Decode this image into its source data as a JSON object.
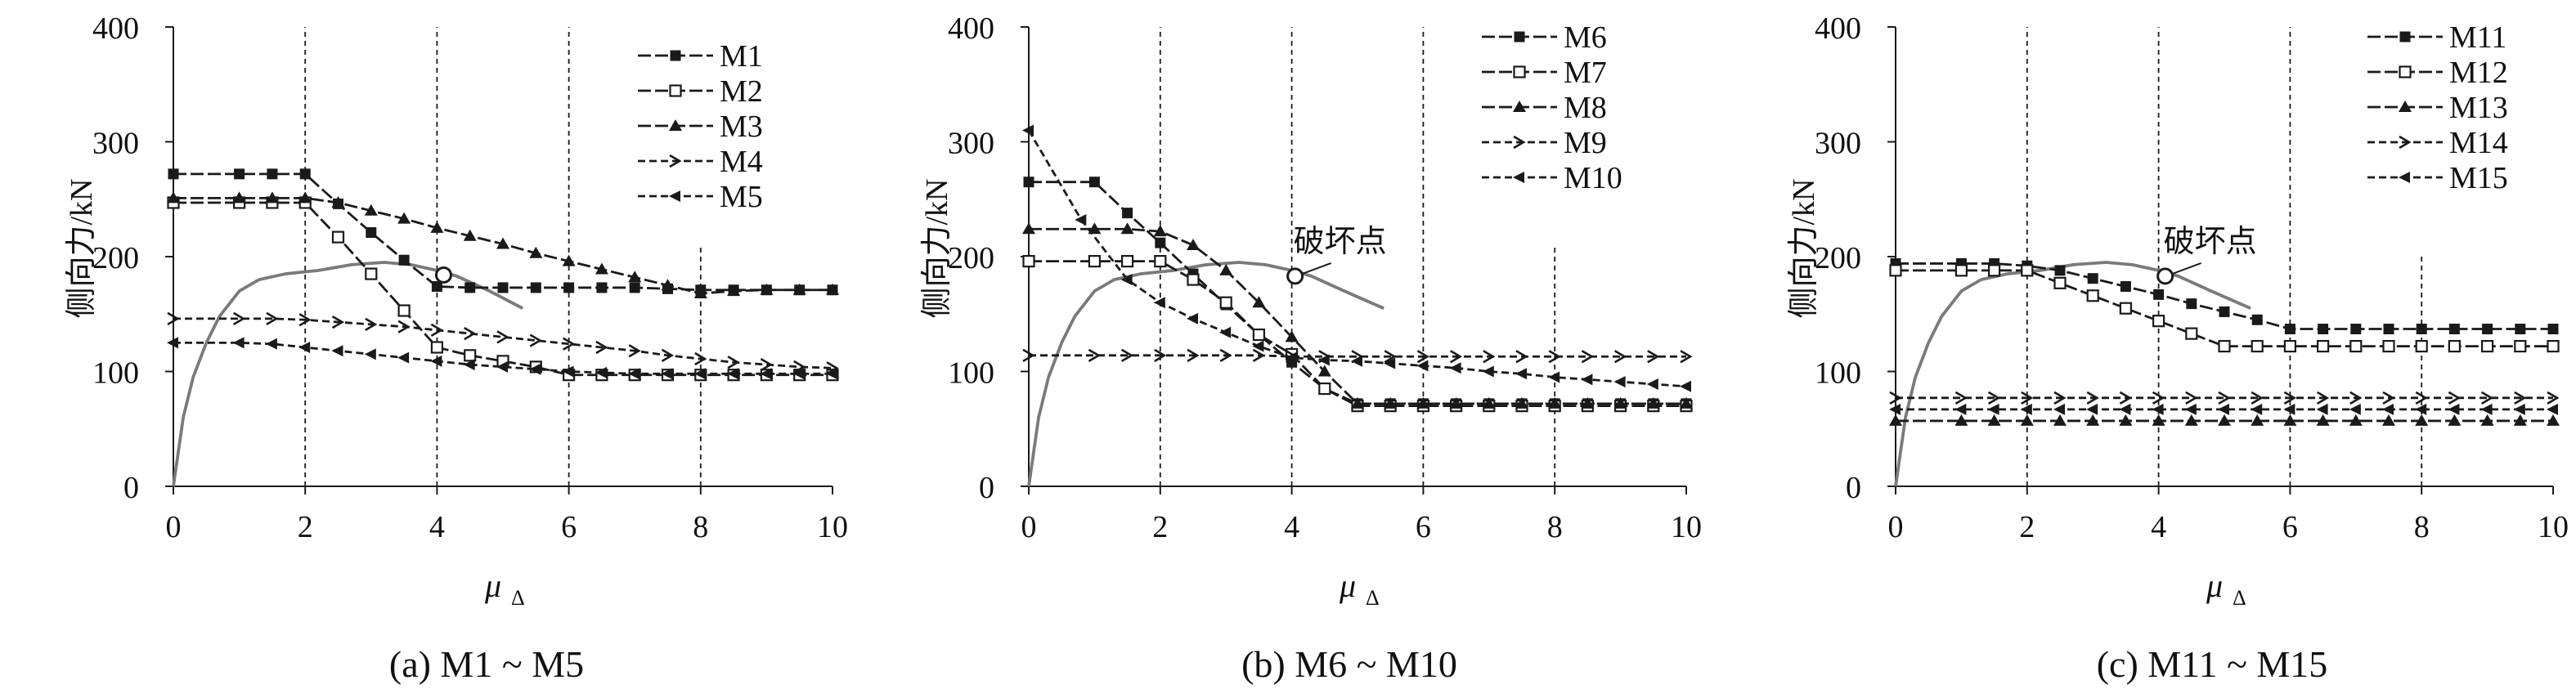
{
  "colors": {
    "ink": "#1a1a1a",
    "capacity_curve": "#7a7a7a",
    "grid": "#1a1a1a"
  },
  "chart_data": [
    {
      "type": "line",
      "caption": "(a) M1 ~ M5",
      "xlabel": "μ",
      "xlabel_sub": "Δ",
      "ylabel": "侧向力/kN",
      "xlim": [
        0,
        10
      ],
      "ylim": [
        0,
        400
      ],
      "xticks": [
        "0",
        "2",
        "4",
        "6",
        "8",
        "10"
      ],
      "yticks": [
        "0",
        "100",
        "200",
        "300",
        "400"
      ],
      "dashed_x": [
        2,
        4,
        6,
        8
      ],
      "dashed_x_ymax": [
        400,
        400,
        400,
        210
      ],
      "legend_position": "top-right",
      "series": [
        {
          "name": "M1",
          "marker": "square-filled",
          "dash": "long",
          "x": [
            0,
            1,
            1.5,
            2,
            2.5,
            3,
            3.5,
            4,
            4.5,
            5,
            5.5,
            6,
            6.5,
            7,
            7.5,
            8,
            8.5,
            9,
            9.5,
            10
          ],
          "values": [
            272,
            272,
            272,
            272,
            246,
            221,
            197,
            174,
            173,
            173,
            173,
            173,
            173,
            173,
            172,
            171,
            171,
            171,
            171,
            171
          ]
        },
        {
          "name": "M2",
          "marker": "square-open",
          "dash": "long",
          "x": [
            0,
            1,
            1.5,
            2,
            2.5,
            3,
            3.5,
            4,
            4.5,
            5,
            5.5,
            6,
            6.5,
            7,
            7.5,
            8,
            8.5,
            9,
            9.5,
            10
          ],
          "values": [
            247,
            247,
            247,
            247,
            217,
            185,
            153,
            121,
            114,
            109,
            104,
            97,
            97,
            97,
            97,
            97,
            97,
            97,
            97,
            97
          ]
        },
        {
          "name": "M3",
          "marker": "triangle-filled",
          "dash": "long",
          "x": [
            0,
            1,
            1.5,
            2,
            2.5,
            3,
            3.5,
            4,
            4.5,
            5,
            5.5,
            6,
            6.5,
            7,
            7.5,
            8,
            8.5,
            9,
            9.5,
            10
          ],
          "values": [
            251,
            251,
            251,
            251,
            247,
            240,
            233,
            225,
            218,
            211,
            203,
            196,
            189,
            182,
            175,
            168,
            170,
            171,
            171,
            171
          ]
        },
        {
          "name": "M4",
          "marker": "chevron-right",
          "dash": "medium",
          "x": [
            0,
            1,
            1.5,
            2,
            2.5,
            3,
            3.5,
            4,
            4.5,
            5,
            5.5,
            6,
            6.5,
            7,
            7.5,
            8,
            8.5,
            9,
            9.5,
            10
          ],
          "values": [
            146,
            146,
            146,
            145,
            143,
            141,
            139,
            136,
            133,
            130,
            127,
            124,
            121,
            118,
            114,
            111,
            108,
            106,
            104,
            103
          ]
        },
        {
          "name": "M5",
          "marker": "triangle-left",
          "dash": "medium",
          "x": [
            0,
            1,
            1.5,
            2,
            2.5,
            3,
            3.5,
            4,
            4.5,
            5,
            5.5,
            6,
            6.5,
            7,
            7.5,
            8,
            8.5,
            9,
            9.5,
            10
          ],
          "values": [
            125,
            125,
            124,
            121,
            118,
            115,
            112,
            109,
            106,
            104,
            102,
            100,
            99,
            98,
            98,
            98,
            98,
            98,
            98,
            98
          ]
        }
      ],
      "capacity_curve": {
        "x": [
          0,
          0.15,
          0.3,
          0.5,
          0.7,
          1.0,
          1.3,
          1.7,
          2.2,
          2.7,
          3.2,
          3.6,
          4.0,
          4.3,
          4.8,
          5.3
        ],
        "values": [
          0,
          60,
          95,
          125,
          148,
          170,
          180,
          185,
          188,
          193,
          195,
          193,
          188,
          183,
          170,
          155
        ]
      },
      "failure_point": {
        "x": 4.1,
        "y": 184
      },
      "failure_label": ""
    },
    {
      "type": "line",
      "caption": "(b) M6 ~ M10",
      "xlabel": "μ",
      "xlabel_sub": "Δ",
      "ylabel": "侧向力/kN",
      "xlim": [
        0,
        10
      ],
      "ylim": [
        0,
        400
      ],
      "xticks": [
        "0",
        "2",
        "4",
        "6",
        "8",
        "10"
      ],
      "yticks": [
        "0",
        "100",
        "200",
        "300",
        "400"
      ],
      "dashed_x": [
        2,
        4,
        6,
        8
      ],
      "dashed_x_ymax": [
        400,
        400,
        400,
        210
      ],
      "legend_position": "top-right",
      "series": [
        {
          "name": "M6",
          "marker": "square-filled",
          "dash": "long",
          "x": [
            0,
            1,
            1.5,
            2,
            2.5,
            3,
            3.5,
            4,
            4.5,
            5,
            5.5,
            6,
            6.5,
            7,
            7.5,
            8,
            8.5,
            9,
            9.5,
            10
          ],
          "values": [
            265,
            265,
            238,
            212,
            185,
            158,
            132,
            108,
            85,
            72,
            72,
            72,
            72,
            72,
            72,
            72,
            72,
            72,
            72,
            72
          ]
        },
        {
          "name": "M7",
          "marker": "square-open",
          "dash": "long",
          "x": [
            0,
            1,
            1.5,
            2,
            2.5,
            3,
            3.5,
            4,
            4.5,
            5,
            5.5,
            6,
            6.5,
            7,
            7.5,
            8,
            8.5,
            9,
            9.5,
            10
          ],
          "values": [
            196,
            196,
            196,
            196,
            180,
            160,
            132,
            115,
            85,
            70,
            70,
            70,
            70,
            70,
            70,
            70,
            70,
            70,
            70,
            70
          ]
        },
        {
          "name": "M8",
          "marker": "triangle-filled",
          "dash": "long",
          "x": [
            0,
            1,
            1.5,
            2,
            2.5,
            3,
            3.5,
            4,
            4.5,
            5,
            5.5,
            6,
            6.5,
            7,
            7.5,
            8,
            8.5,
            9,
            9.5,
            10
          ],
          "values": [
            224,
            224,
            224,
            222,
            210,
            188,
            160,
            130,
            100,
            72,
            72,
            72,
            72,
            72,
            72,
            72,
            72,
            72,
            72,
            72
          ]
        },
        {
          "name": "M9",
          "marker": "chevron-right",
          "dash": "medium",
          "x": [
            0,
            1,
            1.5,
            2,
            2.5,
            3,
            3.5,
            4,
            4.5,
            5,
            5.5,
            6,
            6.5,
            7,
            7.5,
            8,
            8.5,
            9,
            9.5,
            10
          ],
          "values": [
            114,
            114,
            114,
            114,
            114,
            114,
            114,
            113,
            113,
            113,
            113,
            113,
            113,
            113,
            113,
            113,
            113,
            113,
            113,
            113
          ]
        },
        {
          "name": "M10",
          "marker": "triangle-left",
          "dash": "medium",
          "x": [
            0,
            0.8,
            1.5,
            2,
            2.5,
            3,
            3.5,
            4,
            4.5,
            5,
            5.5,
            6,
            6.5,
            7,
            7.5,
            8,
            8.5,
            9,
            9.5,
            10
          ],
          "values": [
            310,
            232,
            180,
            160,
            146,
            134,
            122,
            112,
            110,
            109,
            107,
            105,
            103,
            100,
            98,
            95,
            93,
            91,
            89,
            87
          ]
        }
      ],
      "capacity_curve": {
        "x": [
          0,
          0.15,
          0.3,
          0.5,
          0.7,
          1.0,
          1.3,
          1.7,
          2.2,
          2.7,
          3.2,
          3.6,
          4.0,
          4.3,
          4.8,
          5.4
        ],
        "values": [
          0,
          60,
          95,
          125,
          148,
          170,
          180,
          185,
          188,
          193,
          195,
          193,
          188,
          183,
          170,
          155
        ]
      },
      "failure_point": {
        "x": 4.05,
        "y": 183
      },
      "failure_label": "破坏点"
    },
    {
      "type": "line",
      "caption": "(c) M11 ~ M15",
      "xlabel": "μ",
      "xlabel_sub": "Δ",
      "ylabel": "侧向力/kN",
      "xlim": [
        0,
        10
      ],
      "ylim": [
        0,
        400
      ],
      "xticks": [
        "0",
        "2",
        "4",
        "6",
        "8",
        "10"
      ],
      "yticks": [
        "0",
        "100",
        "200",
        "300",
        "400"
      ],
      "dashed_x": [
        2,
        4,
        6,
        8
      ],
      "dashed_x_ymax": [
        400,
        400,
        400,
        200
      ],
      "legend_position": "top-right",
      "series": [
        {
          "name": "M11",
          "marker": "square-filled",
          "dash": "long",
          "x": [
            0,
            1,
            1.5,
            2,
            2.5,
            3,
            3.5,
            4,
            4.5,
            5,
            5.5,
            6,
            6.5,
            7,
            7.5,
            8,
            8.5,
            9,
            9.5,
            10
          ],
          "values": [
            194,
            194,
            194,
            192,
            188,
            181,
            174,
            167,
            159,
            152,
            145,
            137,
            137,
            137,
            137,
            137,
            137,
            137,
            137,
            137
          ]
        },
        {
          "name": "M12",
          "marker": "square-open",
          "dash": "long",
          "x": [
            0,
            1,
            1.5,
            2,
            2.5,
            3,
            3.5,
            4,
            4.5,
            5,
            5.5,
            6,
            6.5,
            7,
            7.5,
            8,
            8.5,
            9,
            9.5,
            10
          ],
          "values": [
            188,
            188,
            188,
            188,
            177,
            166,
            155,
            144,
            133,
            122,
            122,
            122,
            122,
            122,
            122,
            122,
            122,
            122,
            122,
            122
          ]
        },
        {
          "name": "M13",
          "marker": "triangle-filled",
          "dash": "long",
          "x": [
            0,
            1,
            1.5,
            2,
            2.5,
            3,
            3.5,
            4,
            4.5,
            5,
            5.5,
            6,
            6.5,
            7,
            7.5,
            8,
            8.5,
            9,
            9.5,
            10
          ],
          "values": [
            57,
            57,
            57,
            57,
            57,
            57,
            57,
            57,
            57,
            57,
            57,
            57,
            57,
            57,
            57,
            57,
            57,
            57,
            57,
            57
          ]
        },
        {
          "name": "M14",
          "marker": "chevron-right",
          "dash": "medium",
          "x": [
            0,
            1,
            1.5,
            2,
            2.5,
            3,
            3.5,
            4,
            4.5,
            5,
            5.5,
            6,
            6.5,
            7,
            7.5,
            8,
            8.5,
            9,
            9.5,
            10
          ],
          "values": [
            77,
            77,
            77,
            77,
            77,
            77,
            77,
            77,
            77,
            77,
            77,
            77,
            77,
            77,
            77,
            77,
            77,
            77,
            77,
            77
          ]
        },
        {
          "name": "M15",
          "marker": "triangle-left",
          "dash": "medium",
          "x": [
            0,
            1,
            1.5,
            2,
            2.5,
            3,
            3.5,
            4,
            4.5,
            5,
            5.5,
            6,
            6.5,
            7,
            7.5,
            8,
            8.5,
            9,
            9.5,
            10
          ],
          "values": [
            67,
            67,
            67,
            67,
            67,
            67,
            67,
            67,
            67,
            67,
            67,
            67,
            67,
            67,
            67,
            67,
            67,
            67,
            67,
            67
          ]
        }
      ],
      "capacity_curve": {
        "x": [
          0,
          0.15,
          0.3,
          0.5,
          0.7,
          1.0,
          1.3,
          1.7,
          2.2,
          2.7,
          3.2,
          3.6,
          4.0,
          4.3,
          4.8,
          5.4
        ],
        "values": [
          0,
          60,
          95,
          125,
          148,
          170,
          180,
          185,
          188,
          193,
          195,
          193,
          188,
          183,
          170,
          155
        ]
      },
      "failure_point": {
        "x": 4.1,
        "y": 183
      },
      "failure_label": "破坏点"
    }
  ]
}
